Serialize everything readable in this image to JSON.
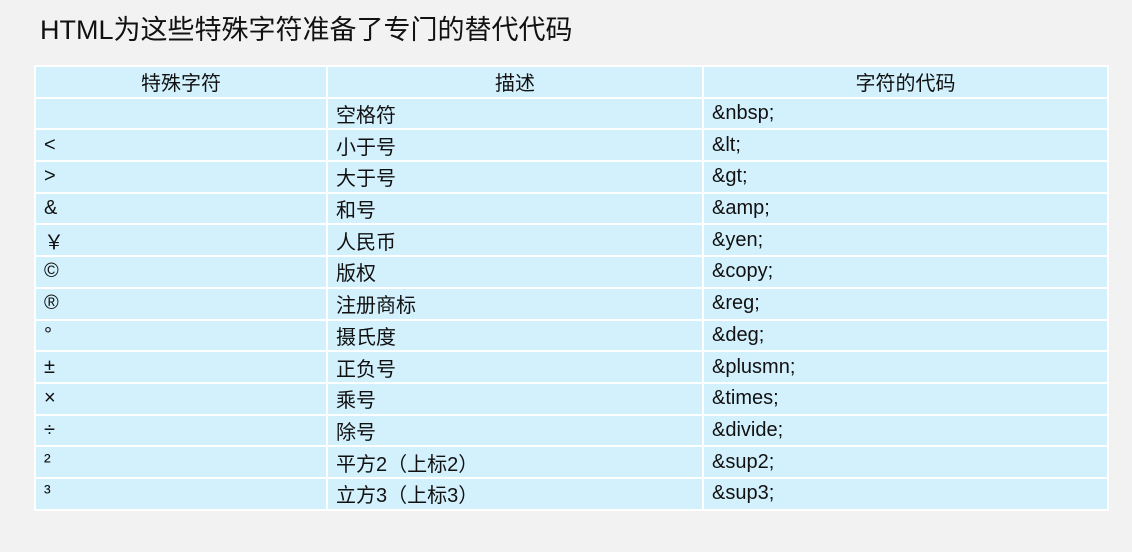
{
  "title": "HTML为这些特殊字符准备了专门的替代代码",
  "headers": [
    "特殊字符",
    "描述",
    "字符的代码"
  ],
  "rows": [
    {
      "char": " ",
      "desc": "空格符",
      "code": "&nbsp;"
    },
    {
      "char": "<",
      "desc": "小于号",
      "code": "&lt;"
    },
    {
      "char": ">",
      "desc": "大于号",
      "code": "&gt;"
    },
    {
      "char": "&",
      "desc": "和号",
      "code": "&amp;"
    },
    {
      "char": "￥",
      "desc": "人民币",
      "code": "&yen;"
    },
    {
      "char": "©",
      "desc": "版权",
      "code": "&copy;"
    },
    {
      "char": "®",
      "desc": "注册商标",
      "code": "&reg;"
    },
    {
      "char": "°",
      "desc": "摄氏度",
      "code": "&deg;"
    },
    {
      "char": "±",
      "desc": "正负号",
      "code": "&plusmn;"
    },
    {
      "char": "×",
      "desc": "乘号",
      "code": "&times;"
    },
    {
      "char": "÷",
      "desc": "除号",
      "code": "&divide;"
    },
    {
      "char": "²",
      "desc": "平方2（上标2）",
      "code": "&sup2;"
    },
    {
      "char": "³",
      "desc": "立方3（上标3）",
      "code": "&sup3;"
    }
  ]
}
